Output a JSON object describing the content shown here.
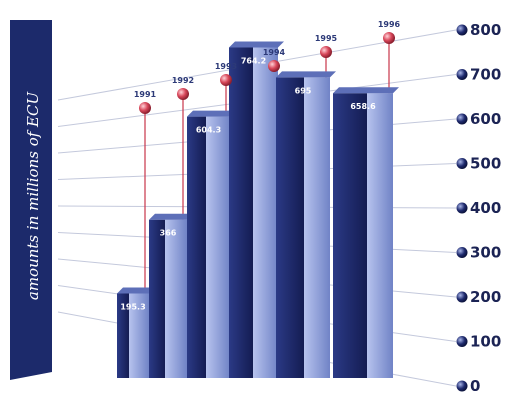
{
  "chart_data": {
    "type": "bar",
    "categories": [
      "1991",
      "1992",
      "1993",
      "1994",
      "1995",
      "1996"
    ],
    "values": [
      195.3,
      366,
      604.3,
      764.2,
      695,
      658.6
    ],
    "value_labels": [
      "195.3",
      "366",
      "604.3",
      "764.2",
      "695",
      "658.6"
    ],
    "ylabel": "amounts in millions of ECU",
    "ylim": [
      0,
      800
    ],
    "yticks": [
      0,
      100,
      200,
      300,
      400,
      500,
      600,
      700,
      800
    ],
    "ytick_labels": [
      "0",
      "100",
      "200",
      "300",
      "400",
      "500",
      "600",
      "700",
      "800"
    ],
    "grid": true,
    "bar_color_front": "#1e2a6e",
    "bar_color_side": "#8e9fd6",
    "marker_color": "#d8475a",
    "leader_line_color": "#c8364a",
    "tick_marker_color": "#1e2a6e",
    "ylabel_box_color": "#1c2a6b"
  }
}
